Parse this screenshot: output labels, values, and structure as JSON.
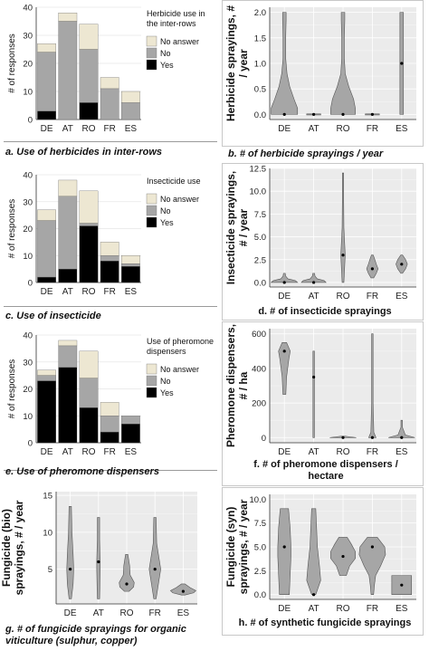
{
  "colors": {
    "yes": "#000000",
    "no": "#a6a6a6",
    "no_answer": "#ede7d2",
    "violin": "#a6a6a6",
    "violin_stroke": "#555555"
  },
  "chart_data": [
    {
      "id": "a",
      "type": "bar",
      "caption": "a. Use of herbicides in inter-rows",
      "ylabel": "# of responses",
      "legend_title": "Herbicide use in the inter-rows",
      "legend_position": "top-right",
      "categories": [
        "DE",
        "AT",
        "RO",
        "FR",
        "ES"
      ],
      "ylim": [
        0,
        40
      ],
      "yticks": [
        0,
        10,
        20,
        30,
        40
      ],
      "series": [
        {
          "name": "Yes",
          "color": "#000000",
          "values": [
            3,
            0,
            6,
            0,
            0
          ]
        },
        {
          "name": "No",
          "color": "#a6a6a6",
          "values": [
            21,
            35,
            19,
            11,
            6
          ]
        },
        {
          "name": "No answer",
          "color": "#ede7d2",
          "values": [
            3,
            3,
            9,
            4,
            4
          ]
        }
      ]
    },
    {
      "id": "b",
      "type": "violin",
      "caption": "b. # of herbicide sprayings / year",
      "ylabel": "Herbicide sprayings, # / year",
      "categories": [
        "DE",
        "AT",
        "RO",
        "FR",
        "ES"
      ],
      "ylim": [
        -0.1,
        2.1
      ],
      "yticks": [
        0.0,
        0.5,
        1.0,
        1.5,
        2.0
      ],
      "violins": [
        {
          "min": 0,
          "max": 2,
          "median": 0,
          "profile": [
            [
              0,
              0.3
            ],
            [
              0.12,
              0.3
            ],
            [
              0.3,
              0.22
            ],
            [
              0.55,
              0.12
            ],
            [
              0.8,
              0.06
            ],
            [
              1.1,
              0.03
            ],
            [
              1.5,
              0.03
            ],
            [
              1.85,
              0.04
            ],
            [
              2,
              0.04
            ]
          ]
        },
        {
          "min": 0,
          "max": 0,
          "median": 0,
          "profile": [
            [
              -0.01,
              0.16
            ],
            [
              0.01,
              0.16
            ]
          ]
        },
        {
          "min": 0,
          "max": 2,
          "median": 0,
          "profile": [
            [
              0,
              0.28
            ],
            [
              0.12,
              0.28
            ],
            [
              0.3,
              0.24
            ],
            [
              0.55,
              0.13
            ],
            [
              0.8,
              0.05
            ],
            [
              1.1,
              0.03
            ],
            [
              1.5,
              0.03
            ],
            [
              1.85,
              0.04
            ],
            [
              2,
              0.04
            ]
          ]
        },
        {
          "min": 0,
          "max": 0,
          "median": 0,
          "profile": [
            [
              -0.01,
              0.16
            ],
            [
              0.01,
              0.16
            ]
          ]
        },
        {
          "min": 0,
          "max": 2,
          "median": 1,
          "profile": [
            [
              0,
              0.04
            ],
            [
              2,
              0.04
            ]
          ]
        }
      ]
    },
    {
      "id": "c",
      "type": "bar",
      "caption": "c. Use of insecticide",
      "ylabel": "# of responses",
      "legend_title": "Insecticide use",
      "legend_position": "top-right",
      "categories": [
        "DE",
        "AT",
        "RO",
        "FR",
        "ES"
      ],
      "ylim": [
        0,
        40
      ],
      "yticks": [
        0,
        10,
        20,
        30,
        40
      ],
      "series": [
        {
          "name": "Yes",
          "color": "#000000",
          "values": [
            2,
            5,
            21,
            8,
            6
          ]
        },
        {
          "name": "No",
          "color": "#a6a6a6",
          "values": [
            21,
            27,
            1,
            2,
            1
          ]
        },
        {
          "name": "No answer",
          "color": "#ede7d2",
          "values": [
            4,
            6,
            12,
            5,
            3
          ]
        }
      ]
    },
    {
      "id": "d",
      "type": "violin",
      "caption": "d. # of insecticide sprayings",
      "ylabel": "Insecticide sprayings, # / year",
      "categories": [
        "DE",
        "AT",
        "RO",
        "FR",
        "ES"
      ],
      "ylim": [
        -0.5,
        12.5
      ],
      "yticks": [
        0.0,
        2.5,
        5.0,
        7.5,
        10.0,
        12.5
      ],
      "violins": [
        {
          "min": 0,
          "max": 1,
          "median": 0,
          "profile": [
            [
              0,
              0.3
            ],
            [
              0.2,
              0.25
            ],
            [
              0.4,
              0.08
            ],
            [
              0.7,
              0.03
            ],
            [
              1,
              0.02
            ]
          ]
        },
        {
          "min": 0,
          "max": 1,
          "median": 0,
          "profile": [
            [
              0,
              0.28
            ],
            [
              0.2,
              0.24
            ],
            [
              0.4,
              0.08
            ],
            [
              0.7,
              0.03
            ],
            [
              1,
              0.02
            ]
          ]
        },
        {
          "min": 0,
          "max": 12,
          "median": 3,
          "profile": [
            [
              0,
              0.02
            ],
            [
              2,
              0.04
            ],
            [
              3,
              0.05
            ],
            [
              4,
              0.04
            ],
            [
              6,
              0.02
            ],
            [
              9,
              0.01
            ],
            [
              12,
              0.01
            ]
          ]
        },
        {
          "min": 0.5,
          "max": 3,
          "median": 1.5,
          "profile": [
            [
              0.5,
              0.03
            ],
            [
              1,
              0.09
            ],
            [
              1.5,
              0.13
            ],
            [
              2,
              0.09
            ],
            [
              2.6,
              0.05
            ],
            [
              3,
              0.02
            ]
          ]
        },
        {
          "min": 1,
          "max": 3,
          "median": 2,
          "profile": [
            [
              1,
              0.02
            ],
            [
              1.5,
              0.09
            ],
            [
              2,
              0.13
            ],
            [
              2.5,
              0.09
            ],
            [
              3,
              0.02
            ]
          ]
        }
      ]
    },
    {
      "id": "e",
      "type": "bar",
      "caption": "e. Use of pheromone dispensers",
      "ylabel": "# of responses",
      "legend_title": "Use of pheromone dispensers",
      "legend_position": "top-right",
      "categories": [
        "DE",
        "AT",
        "RO",
        "FR",
        "ES"
      ],
      "ylim": [
        0,
        40
      ],
      "yticks": [
        0,
        10,
        20,
        30,
        40
      ],
      "series": [
        {
          "name": "Yes",
          "color": "#000000",
          "values": [
            23,
            28,
            13,
            4,
            7
          ]
        },
        {
          "name": "No",
          "color": "#a6a6a6",
          "values": [
            2,
            8,
            11,
            6,
            3
          ]
        },
        {
          "name": "No answer",
          "color": "#ede7d2",
          "values": [
            2,
            2,
            10,
            5,
            0
          ]
        }
      ]
    },
    {
      "id": "f",
      "type": "violin",
      "caption": "f. # of pheromone dispensers / hectare",
      "ylabel": "Pheromone dispensers, # / ha",
      "categories": [
        "DE",
        "AT",
        "RO",
        "FR",
        "ES"
      ],
      "ylim": [
        -30,
        630
      ],
      "yticks": [
        0,
        200,
        400,
        600
      ],
      "violins": [
        {
          "min": 250,
          "max": 550,
          "median": 500,
          "profile": [
            [
              250,
              0.02
            ],
            [
              350,
              0.03
            ],
            [
              450,
              0.06
            ],
            [
              500,
              0.08
            ],
            [
              550,
              0.03
            ]
          ]
        },
        {
          "min": 0,
          "max": 500,
          "median": 350,
          "profile": [
            [
              0,
              0.01
            ],
            [
              500,
              0.01
            ]
          ]
        },
        {
          "min": 0,
          "max": 8,
          "median": 0,
          "profile": [
            [
              0,
              0.18
            ],
            [
              4,
              0.1
            ],
            [
              8,
              0.03
            ]
          ]
        },
        {
          "min": 0,
          "max": 600,
          "median": 0,
          "profile": [
            [
              0,
              0.05
            ],
            [
              30,
              0.02
            ],
            [
              200,
              0.01
            ],
            [
              600,
              0.01
            ]
          ]
        },
        {
          "min": 0,
          "max": 100,
          "median": 0,
          "profile": [
            [
              0,
              0.18
            ],
            [
              15,
              0.05
            ],
            [
              60,
              0.01
            ],
            [
              100,
              0.01
            ]
          ]
        }
      ]
    },
    {
      "id": "g",
      "type": "violin",
      "caption": "g. # of fungicide sprayings for organic viticulture (sulphur, copper)",
      "ylabel": "Fungicide (bio) sprayings, # / year",
      "categories": [
        "DE",
        "AT",
        "RO",
        "FR",
        "ES"
      ],
      "ylim": [
        0.3,
        15.5
      ],
      "yticks": [
        5,
        10,
        15
      ],
      "violins": [
        {
          "min": 1,
          "max": 13.5,
          "median": 5,
          "profile": [
            [
              1,
              0.02
            ],
            [
              3,
              0.05
            ],
            [
              5,
              0.06
            ],
            [
              7,
              0.05
            ],
            [
              10,
              0.03
            ],
            [
              13.5,
              0.02
            ]
          ]
        },
        {
          "min": 1,
          "max": 12,
          "median": 6,
          "profile": [
            [
              1,
              0.02
            ],
            [
              5,
              0.03
            ],
            [
              6,
              0.03
            ],
            [
              9,
              0.02
            ],
            [
              12,
              0.02
            ]
          ]
        },
        {
          "min": 2,
          "max": 7,
          "median": 3,
          "profile": [
            [
              2,
              0.04
            ],
            [
              2.6,
              0.12
            ],
            [
              3.2,
              0.13
            ],
            [
              4.2,
              0.06
            ],
            [
              5.5,
              0.05
            ],
            [
              7,
              0.02
            ]
          ]
        },
        {
          "min": 1,
          "max": 12,
          "median": 5,
          "profile": [
            [
              1,
              0.02
            ],
            [
              3,
              0.06
            ],
            [
              5,
              0.1
            ],
            [
              6.5,
              0.07
            ],
            [
              8.5,
              0.03
            ],
            [
              12,
              0.02
            ]
          ]
        },
        {
          "min": 1.5,
          "max": 3,
          "median": 2,
          "profile": [
            [
              1.5,
              0.03
            ],
            [
              1.8,
              0.18
            ],
            [
              2.1,
              0.22
            ],
            [
              2.5,
              0.12
            ],
            [
              3,
              0.03
            ]
          ]
        }
      ]
    },
    {
      "id": "h",
      "type": "violin",
      "caption": "h. # of synthetic fungicide sprayings",
      "ylabel": "Fungicide (syn) sprayings, # / year",
      "categories": [
        "DE",
        "AT",
        "RO",
        "FR",
        "ES"
      ],
      "ylim": [
        -0.5,
        10.5
      ],
      "yticks": [
        0.0,
        2.5,
        5.0,
        7.5,
        10.0
      ],
      "violins": [
        {
          "min": 0,
          "max": 9,
          "median": 5,
          "profile": [
            [
              0,
              0.12
            ],
            [
              2,
              0.14
            ],
            [
              4,
              0.16
            ],
            [
              5,
              0.16
            ],
            [
              7,
              0.14
            ],
            [
              9,
              0.1
            ]
          ]
        },
        {
          "min": 0,
          "max": 9,
          "median": 0,
          "profile": [
            [
              0,
              0.05
            ],
            [
              1.5,
              0.17
            ],
            [
              3,
              0.14
            ],
            [
              5,
              0.09
            ],
            [
              7,
              0.07
            ],
            [
              9,
              0.05
            ]
          ]
        },
        {
          "min": 2,
          "max": 6,
          "median": 4,
          "profile": [
            [
              2,
              0.08
            ],
            [
              3,
              0.16
            ],
            [
              3.8,
              0.3
            ],
            [
              4.5,
              0.3
            ],
            [
              5.3,
              0.2
            ],
            [
              6,
              0.1
            ]
          ]
        },
        {
          "min": 0,
          "max": 6,
          "median": 5,
          "profile": [
            [
              0,
              0.03
            ],
            [
              1,
              0.05
            ],
            [
              2,
              0.08
            ],
            [
              3,
              0.2
            ],
            [
              4.2,
              0.32
            ],
            [
              5,
              0.3
            ],
            [
              6,
              0.12
            ]
          ]
        },
        {
          "min": 0,
          "max": 2,
          "median": 1,
          "profile": [
            [
              0,
              0.24
            ],
            [
              2,
              0.24
            ]
          ]
        }
      ]
    }
  ]
}
